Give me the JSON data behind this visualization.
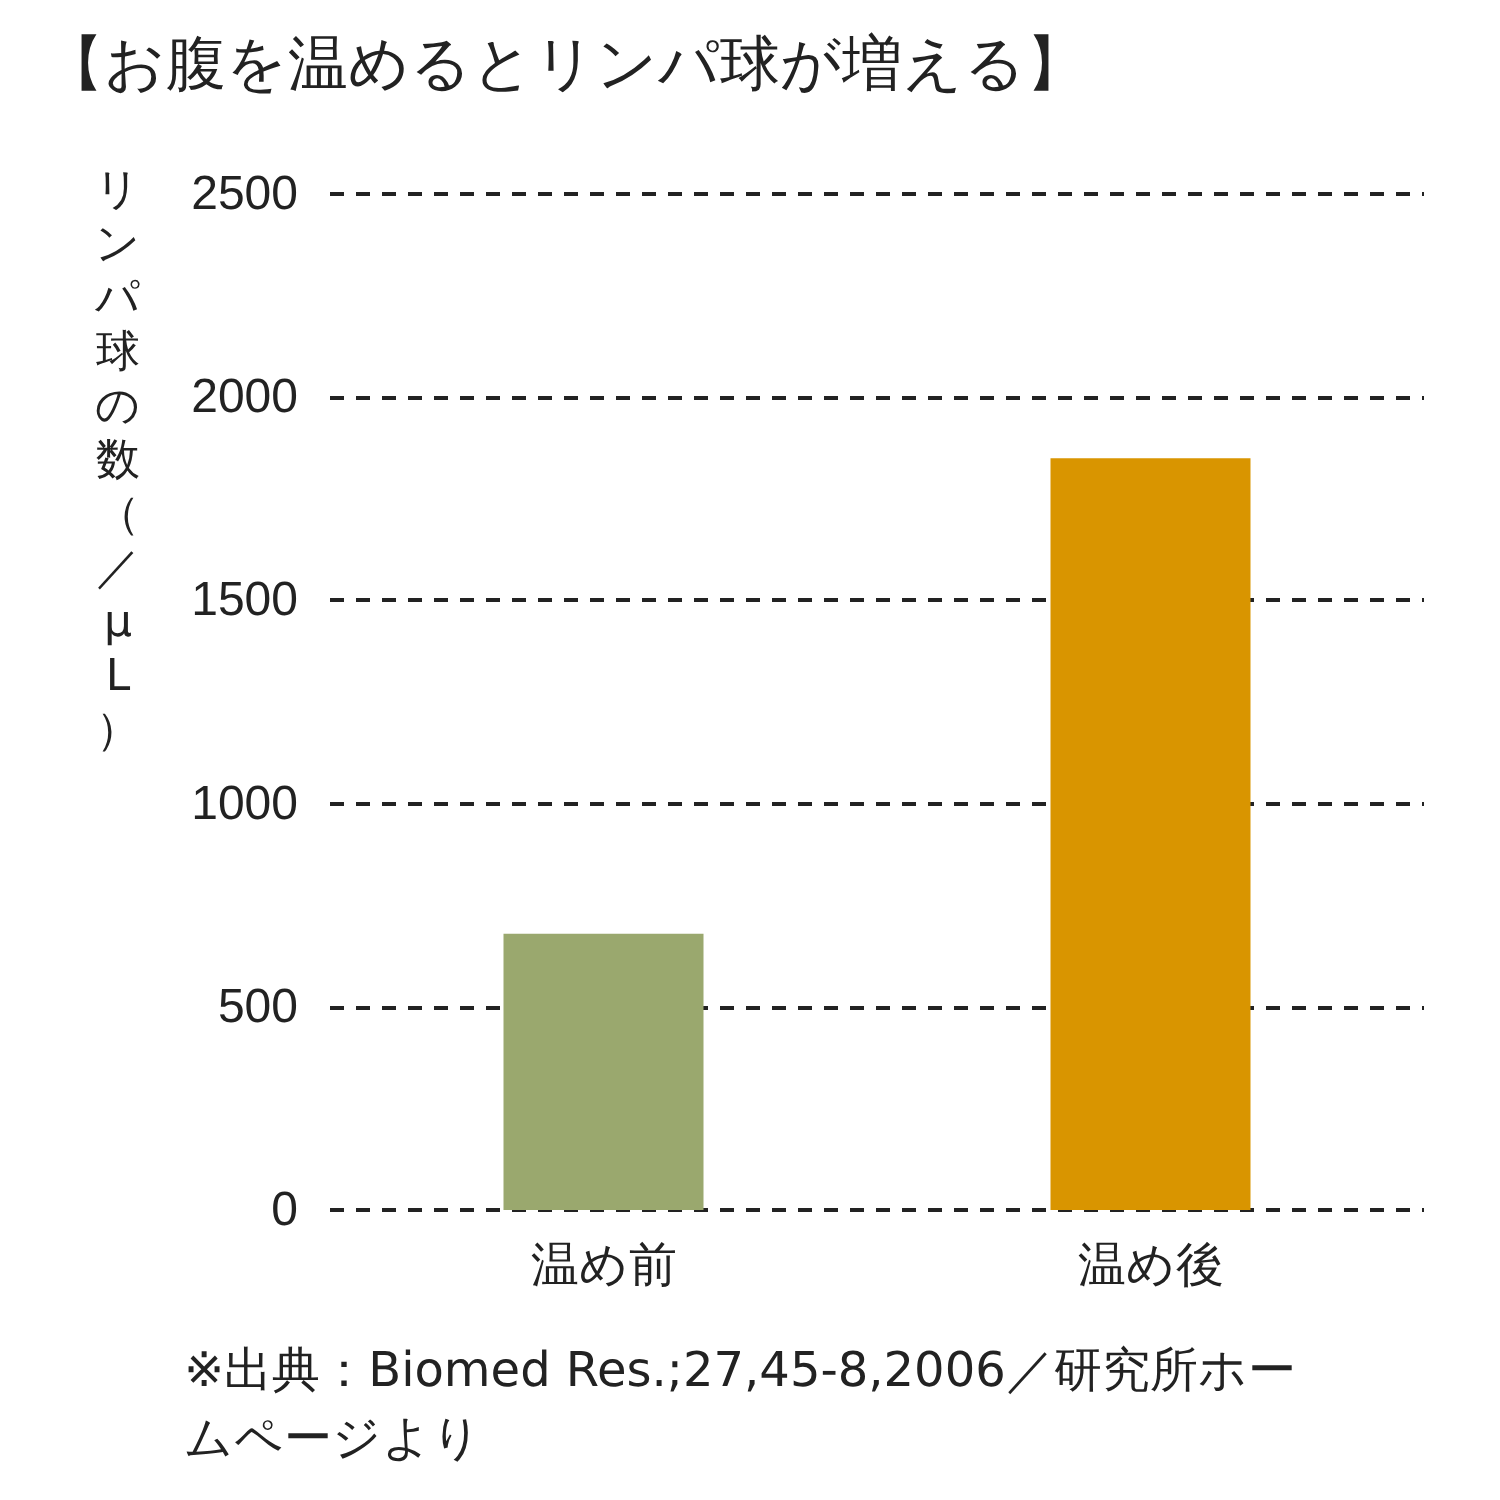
{
  "chart_data": {
    "type": "bar",
    "title": "【お腹を温めるとリンパ球が増える】",
    "ylabel": "リンパ球の数（／μL）",
    "categories": [
      "温め前",
      "温め後"
    ],
    "values": [
      680,
      1850
    ],
    "colors": [
      "#9aa86e",
      "#d99500"
    ],
    "ylim": [
      0,
      2500
    ],
    "yticks": [
      0,
      500,
      1000,
      1500,
      2000,
      2500
    ],
    "grid": "y",
    "annotations": [
      "※出典：Biomed Res.;27,45-8,2006／研究所ホームページより"
    ]
  }
}
